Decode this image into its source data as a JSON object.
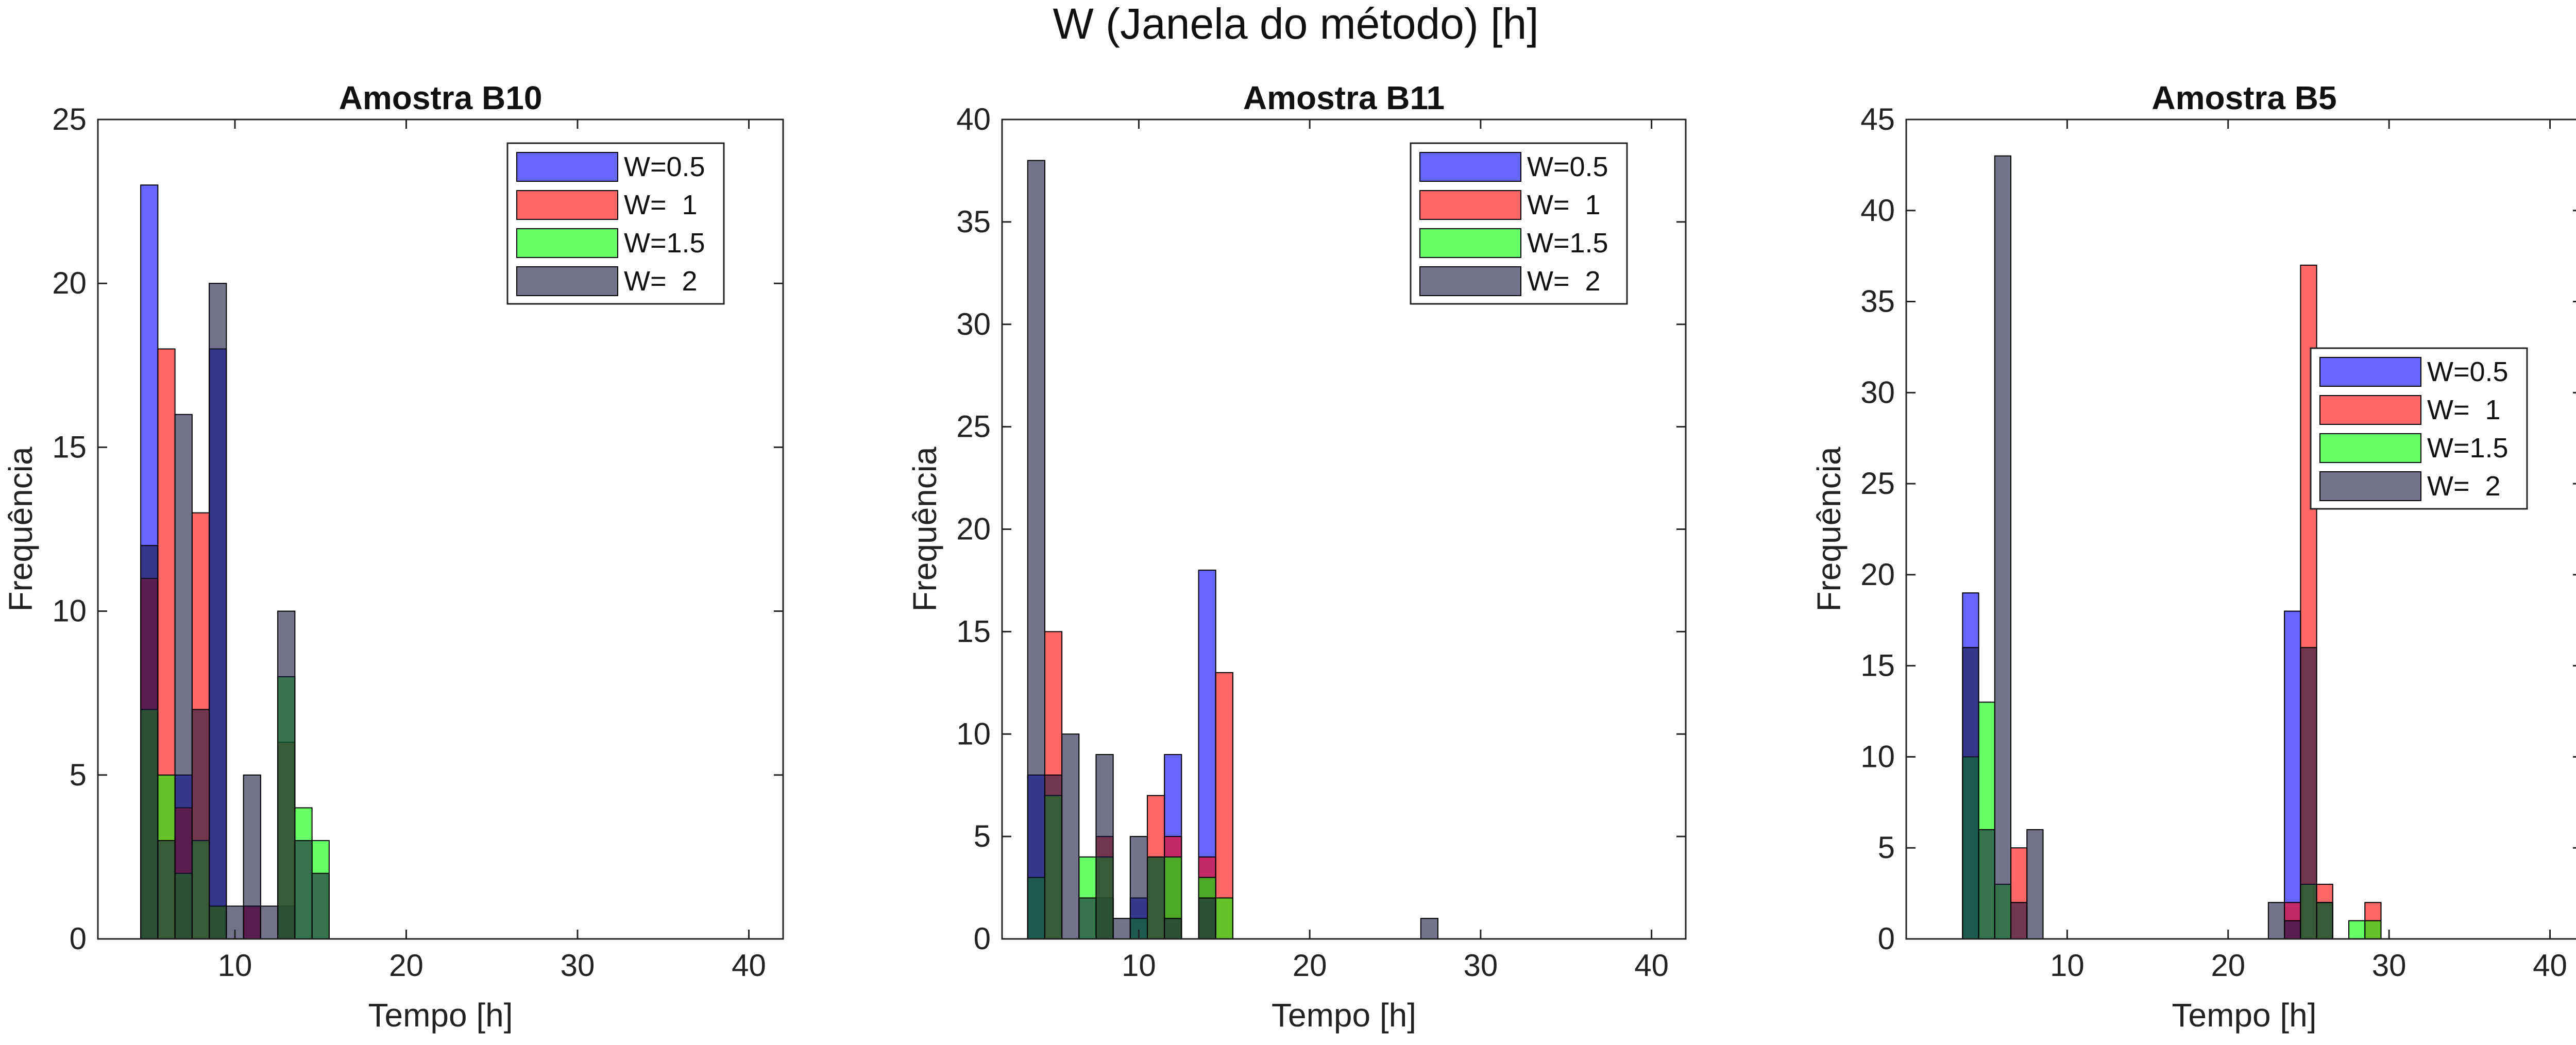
{
  "figure": {
    "title": "W (Janela do método) [h]"
  },
  "colors": {
    "series": [
      "#0000ff",
      "#ff0000",
      "#00ff00",
      "#151540"
    ],
    "series_alpha": 0.6
  },
  "chart_data": [
    {
      "type": "bar",
      "title": "Amostra B10",
      "xlabel": "Tempo [h]",
      "ylabel": "Frequência",
      "xlim": [
        2,
        42
      ],
      "ylim": [
        0,
        25
      ],
      "xticks": [
        10,
        20,
        30,
        40
      ],
      "yticks": [
        0,
        5,
        10,
        15,
        20,
        25
      ],
      "bin_width": 1,
      "legend_position": "top-right",
      "series": [
        {
          "name": "W=0.5",
          "x": [
            5,
            7,
            9,
            11,
            13
          ],
          "values": [
            23,
            5,
            18,
            1,
            1
          ]
        },
        {
          "name": "W=  1",
          "x": [
            5,
            6,
            7,
            8,
            9,
            11,
            13
          ],
          "values": [
            11,
            18,
            4,
            13,
            1,
            1,
            6
          ]
        },
        {
          "name": "W=1.5",
          "x": [
            5,
            6,
            7,
            8,
            9,
            13,
            14,
            15
          ],
          "values": [
            7,
            5,
            2,
            3,
            1,
            8,
            4,
            3
          ]
        },
        {
          "name": "W=  2",
          "x": [
            5,
            6,
            7,
            8,
            9,
            10,
            11,
            12,
            13,
            14,
            15
          ],
          "values": [
            12,
            3,
            16,
            7,
            20,
            1,
            5,
            1,
            10,
            3,
            2
          ]
        }
      ]
    },
    {
      "type": "bar",
      "title": "Amostra B11",
      "xlabel": "Tempo [h]",
      "ylabel": "Frequência",
      "xlim": [
        2,
        42
      ],
      "ylim": [
        0,
        40
      ],
      "xticks": [
        10,
        20,
        30,
        40
      ],
      "yticks": [
        0,
        5,
        10,
        15,
        20,
        25,
        30,
        35,
        40
      ],
      "bin_width": 1,
      "legend_position": "top-right",
      "series": [
        {
          "name": "W=0.5",
          "x": [
            4,
            8,
            10,
            12,
            14
          ],
          "values": [
            8,
            2,
            2,
            9,
            18
          ]
        },
        {
          "name": "W=  1",
          "x": [
            5,
            8,
            11,
            12,
            14,
            15
          ],
          "values": [
            15,
            5,
            7,
            5,
            4,
            13
          ]
        },
        {
          "name": "W=1.5",
          "x": [
            4,
            5,
            7,
            8,
            10,
            11,
            12,
            14,
            15
          ],
          "values": [
            3,
            7,
            4,
            4,
            1,
            4,
            4,
            3,
            2
          ]
        },
        {
          "name": "W=  2",
          "x": [
            4,
            5,
            6,
            7,
            8,
            9,
            10,
            11,
            12,
            14,
            27
          ],
          "values": [
            38,
            8,
            10,
            2,
            9,
            1,
            5,
            4,
            1,
            2,
            1
          ]
        }
      ]
    },
    {
      "type": "bar",
      "title": "Amostra B5",
      "xlabel": "Tempo [h]",
      "ylabel": "Frequência",
      "xlim": [
        0,
        42
      ],
      "ylim": [
        0,
        45
      ],
      "xticks": [
        10,
        20,
        30,
        40
      ],
      "yticks": [
        0,
        5,
        10,
        15,
        20,
        25,
        30,
        35,
        40,
        45
      ],
      "bin_width": 1,
      "legend_position": "center-right",
      "series": [
        {
          "name": "W=0.5",
          "x": [
            4,
            24
          ],
          "values": [
            19,
            18
          ]
        },
        {
          "name": "W=  1",
          "x": [
            7,
            24,
            25,
            26,
            29
          ],
          "values": [
            5,
            2,
            37,
            3,
            2
          ]
        },
        {
          "name": "W=1.5",
          "x": [
            4,
            5,
            6,
            25,
            26,
            28,
            29
          ],
          "values": [
            10,
            13,
            3,
            3,
            2,
            1,
            1
          ]
        },
        {
          "name": "W=  2",
          "x": [
            4,
            5,
            6,
            7,
            8,
            23,
            24,
            25,
            26
          ],
          "values": [
            16,
            6,
            43,
            2,
            6,
            2,
            1,
            16,
            2
          ]
        }
      ]
    }
  ]
}
